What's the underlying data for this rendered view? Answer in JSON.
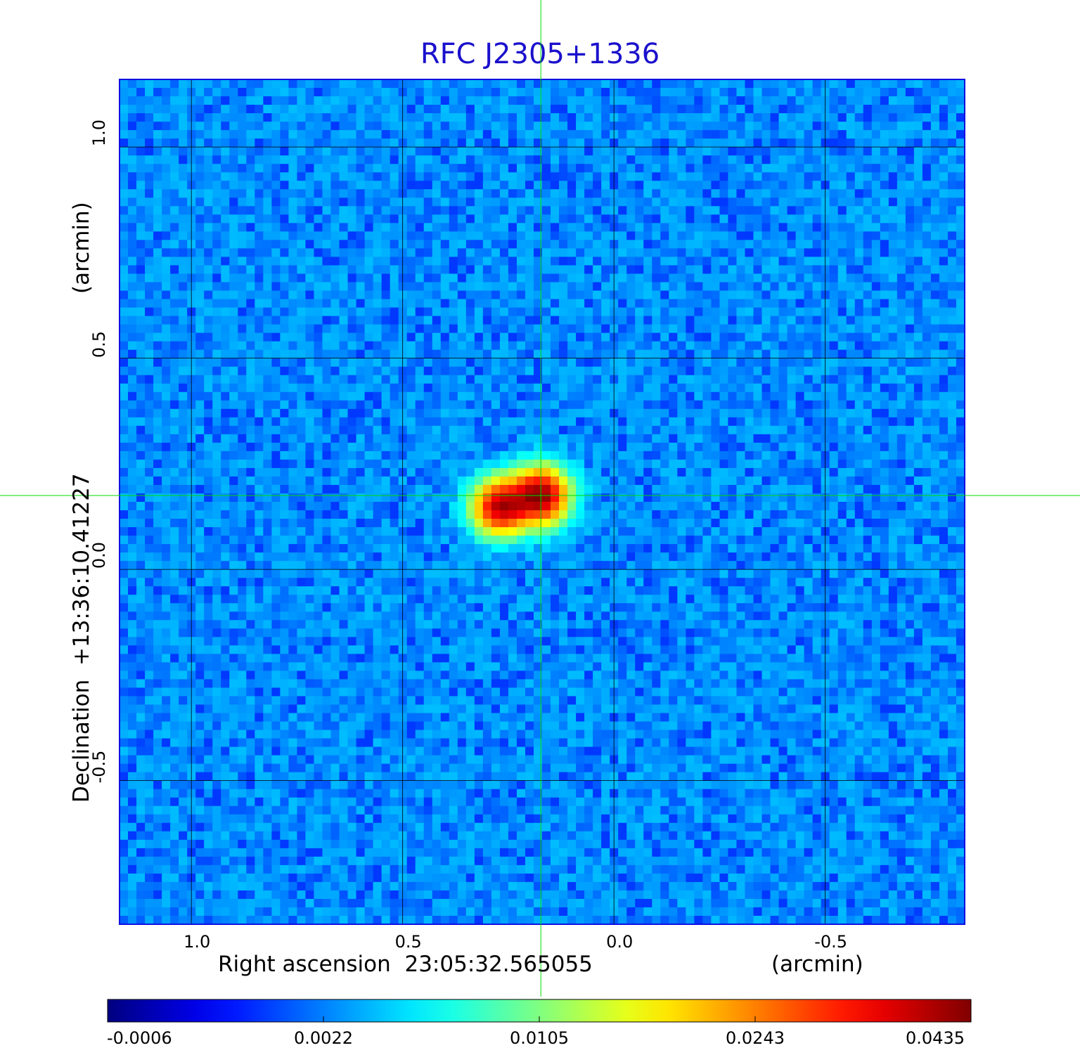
{
  "chart_data": {
    "type": "heatmap",
    "title": "RFC J2305+1336",
    "xlabel": "Right ascension  23:05:32.565055",
    "xlabel_unit": "(arcmin)",
    "ylabel": "Declination  +13:36:10.41227",
    "ylabel_unit": "(arcmin)",
    "x_ticks": [
      "1.0",
      "0.5",
      "0.0",
      "-0.5"
    ],
    "x_tick_values": [
      1.0,
      0.5,
      0.0,
      -0.5
    ],
    "y_ticks": [
      "1.0",
      "0.5",
      "0.0",
      "-0.5"
    ],
    "y_tick_values": [
      1.0,
      0.5,
      0.0,
      -0.5
    ],
    "xlim": [
      1.17,
      -0.83
    ],
    "ylim": [
      -0.84,
      1.16
    ],
    "grid": true,
    "colormap": "jet",
    "colorbar_ticks": [
      "-0.0006",
      "0.0022",
      "0.0105",
      "0.0243",
      "0.0435"
    ],
    "colorbar_range": [
      -0.0006,
      0.0435
    ],
    "crosshair": {
      "x": 0.173,
      "y": 0.175,
      "color": "#00dd00"
    },
    "sources": [
      {
        "x": 0.268,
        "y": 0.148,
        "peak": 0.04
      },
      {
        "x": 0.173,
        "y": 0.175,
        "peak": 0.044
      }
    ],
    "background_level": 0.0002
  }
}
